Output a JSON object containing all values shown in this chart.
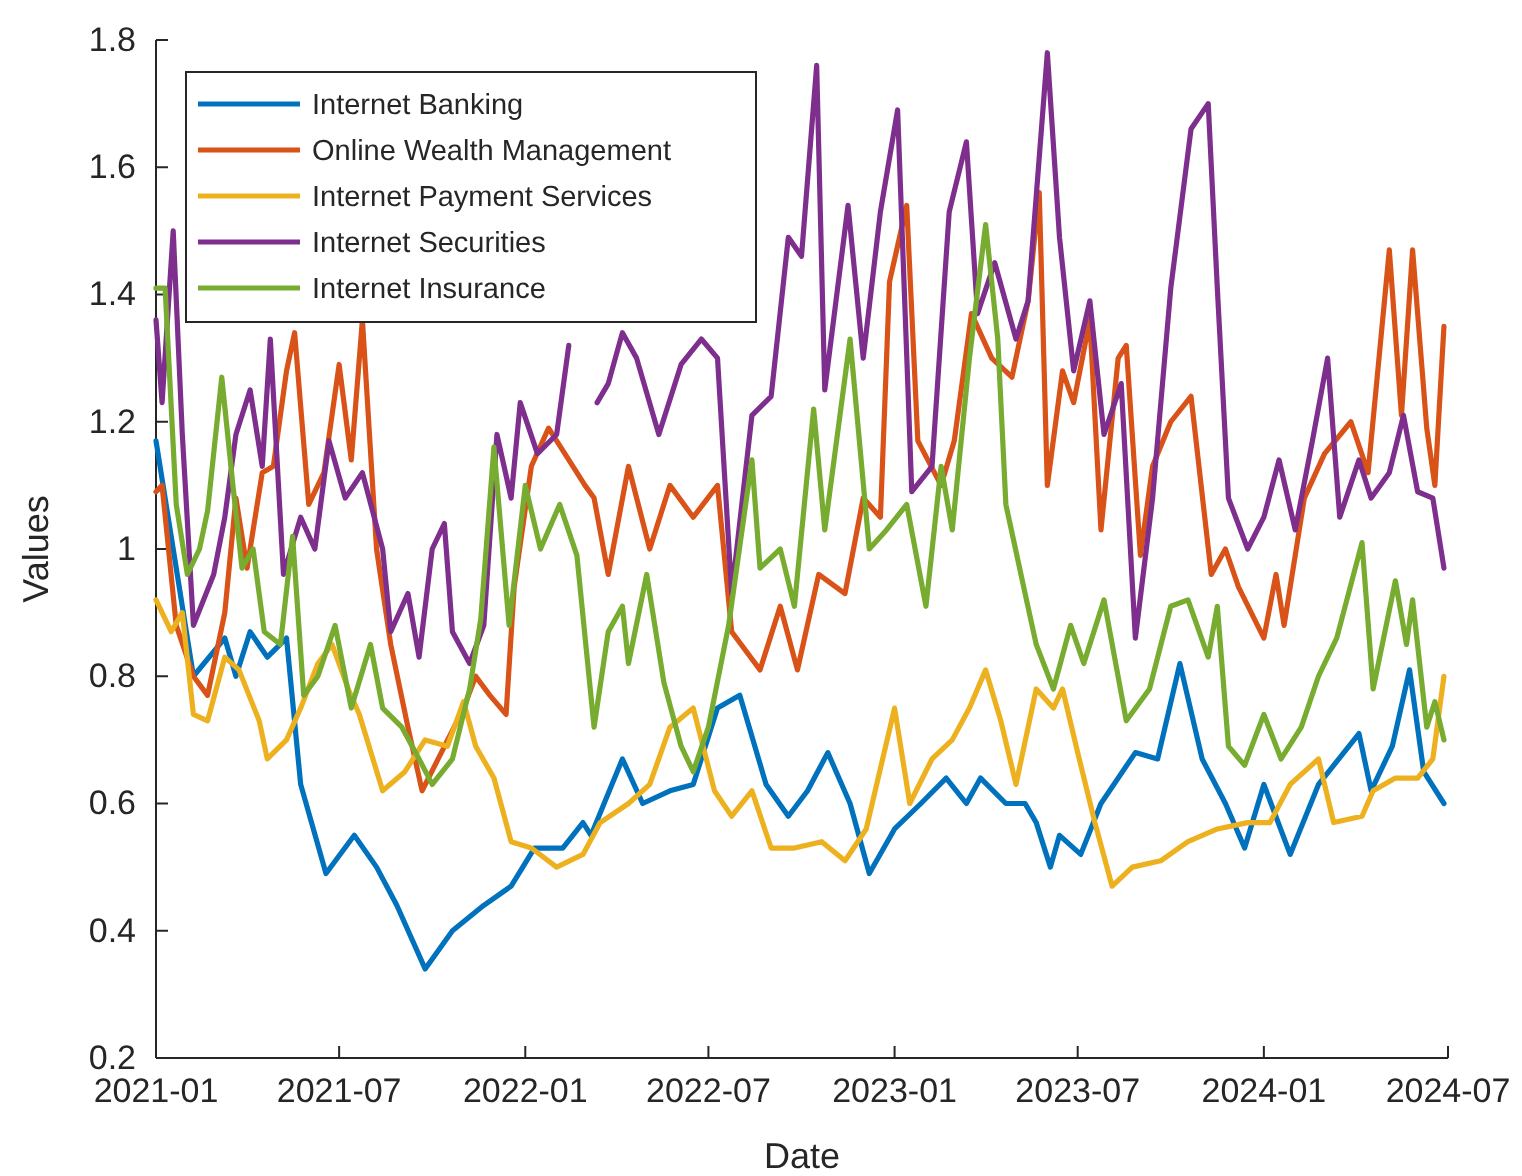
{
  "chart_data": {
    "type": "line",
    "xlabel": "Date",
    "ylabel": "Values",
    "legend": "top left",
    "grid": false,
    "line_style": "solid",
    "xlim": [
      "2021-01-01",
      "2024-07-01"
    ],
    "xticks": [
      {
        "value": "2021-01-01",
        "label": "2021-01"
      },
      {
        "value": "2021-07-01",
        "label": "2021-07"
      },
      {
        "value": "2022-01-01",
        "label": "2022-01"
      },
      {
        "value": "2022-07-01",
        "label": "2022-07"
      },
      {
        "value": "2023-01-01",
        "label": "2023-01"
      },
      {
        "value": "2023-07-01",
        "label": "2023-07"
      },
      {
        "value": "2024-01-01",
        "label": "2024-01"
      },
      {
        "value": "2024-07-01",
        "label": "2024-07"
      }
    ],
    "ylim": [
      0.2,
      1.8
    ],
    "yticks": [
      0.2,
      0.4,
      0.6,
      0.8,
      1,
      1.2,
      1.4,
      1.6,
      1.8
    ],
    "series": [
      {
        "name": "Internet Banking",
        "color": "#0072bd",
        "x": [
          "2021-01-01",
          "2021-02-07",
          "2021-03-10",
          "2021-03-21",
          "2021-04-04",
          "2021-04-21",
          "2021-05-10",
          "2021-05-24",
          "2021-06-18",
          "2021-07-16",
          "2021-08-07",
          "2021-08-27",
          "2021-09-24",
          "2021-10-21",
          "2021-11-21",
          "2021-12-18",
          "2022-01-10",
          "2022-02-07",
          "2022-02-27",
          "2022-03-07",
          "2022-04-07",
          "2022-04-27",
          "2022-05-24",
          "2022-06-16",
          "2022-07-10",
          "2022-08-01",
          "2022-08-27",
          "2022-09-18",
          "2022-10-07",
          "2022-10-27",
          "2022-11-18",
          "2022-12-07",
          "2023-01-01",
          "2023-01-27",
          "2023-02-21",
          "2023-03-13",
          "2023-03-27",
          "2023-04-21",
          "2023-05-10",
          "2023-05-21",
          "2023-06-04",
          "2023-06-13",
          "2023-07-04",
          "2023-07-24",
          "2023-08-27",
          "2023-09-18",
          "2023-10-10",
          "2023-11-01",
          "2023-11-24",
          "2023-12-13",
          "2024-01-01",
          "2024-01-27",
          "2024-02-24",
          "2024-03-10",
          "2024-04-04",
          "2024-04-16",
          "2024-05-07",
          "2024-05-24",
          "2024-06-07",
          "2024-06-27"
        ],
        "values": [
          1.17,
          0.8,
          0.86,
          0.8,
          0.87,
          0.83,
          0.86,
          0.63,
          0.49,
          0.55,
          0.5,
          0.44,
          0.34,
          0.4,
          0.44,
          0.47,
          0.53,
          0.53,
          0.57,
          0.55,
          0.67,
          0.6,
          0.62,
          0.63,
          0.75,
          0.77,
          0.63,
          0.58,
          0.62,
          0.68,
          0.6,
          0.49,
          0.56,
          0.6,
          0.64,
          0.6,
          0.64,
          0.6,
          0.6,
          0.57,
          0.5,
          0.55,
          0.52,
          0.6,
          0.68,
          0.67,
          0.82,
          0.67,
          0.6,
          0.53,
          0.63,
          0.52,
          0.63,
          0.66,
          0.71,
          0.62,
          0.69,
          0.81,
          0.65,
          0.6
        ]
      },
      {
        "name": "Online Wealth Management",
        "color": "#d95319",
        "x": [
          "2021-01-01",
          "2021-01-07",
          "2021-01-21",
          "2021-02-07",
          "2021-02-21",
          "2021-03-10",
          "2021-03-21",
          "2021-04-01",
          "2021-04-16",
          "2021-04-27",
          "2021-05-10",
          "2021-05-18",
          "2021-06-01",
          "2021-06-16",
          "2021-07-01",
          "2021-07-13",
          "2021-07-24",
          "2021-08-07",
          "2021-08-21",
          "2021-09-07",
          "2021-09-21",
          "2021-10-10",
          "2021-11-01",
          "2021-11-13",
          "2021-11-27",
          "2021-12-13",
          "2021-12-21",
          "2022-01-07",
          "2022-01-24",
          "2022-02-13",
          "2022-03-01",
          "2022-03-10",
          "2022-03-24",
          "2022-04-13",
          "2022-05-04",
          "2022-05-24",
          "2022-06-16",
          "2022-07-10",
          "2022-07-24",
          "2022-08-21",
          "2022-09-10",
          "2022-09-27",
          "2022-10-18",
          "2022-11-13",
          "2022-12-01",
          "2022-12-18",
          "2022-12-27",
          "2023-01-13",
          "2023-01-24",
          "2023-02-16",
          "2023-03-01",
          "2023-03-18",
          "2023-04-07",
          "2023-04-27",
          "2023-05-13",
          "2023-05-24",
          "2023-06-01",
          "2023-06-16",
          "2023-06-27",
          "2023-07-13",
          "2023-07-24",
          "2023-08-10",
          "2023-08-18",
          "2023-09-01",
          "2023-09-13",
          "2023-10-01",
          "2023-10-21",
          "2023-11-10",
          "2023-11-24",
          "2023-12-07",
          "2024-01-01",
          "2024-01-13",
          "2024-01-21",
          "2024-02-10",
          "2024-03-01",
          "2024-03-27",
          "2024-04-13",
          "2024-05-04",
          "2024-05-16",
          "2024-05-27",
          "2024-06-10",
          "2024-06-18",
          "2024-06-27"
        ],
        "values": [
          1.09,
          1.1,
          0.88,
          0.8,
          0.77,
          0.9,
          1.08,
          0.97,
          1.12,
          1.13,
          1.28,
          1.34,
          1.07,
          1.12,
          1.29,
          1.14,
          1.36,
          1.0,
          0.85,
          0.72,
          0.62,
          0.68,
          0.75,
          0.8,
          0.77,
          0.74,
          0.94,
          1.13,
          1.19,
          1.14,
          1.1,
          1.08,
          0.96,
          1.13,
          1.0,
          1.1,
          1.05,
          1.1,
          0.87,
          0.81,
          0.91,
          0.81,
          0.96,
          0.93,
          1.08,
          1.05,
          1.42,
          1.54,
          1.17,
          1.1,
          1.17,
          1.37,
          1.3,
          1.27,
          1.39,
          1.56,
          1.1,
          1.28,
          1.23,
          1.36,
          1.03,
          1.3,
          1.32,
          0.99,
          1.13,
          1.2,
          1.24,
          0.96,
          1.0,
          0.94,
          0.86,
          0.96,
          0.88,
          1.08,
          1.15,
          1.2,
          1.12,
          1.47,
          1.21,
          1.47,
          1.19,
          1.1,
          1.35
        ]
      },
      {
        "name": "Internet Payment Services",
        "color": "#edb120",
        "x": [
          "2021-01-01",
          "2021-01-16",
          "2021-01-27",
          "2021-02-07",
          "2021-02-21",
          "2021-03-10",
          "2021-03-24",
          "2021-04-13",
          "2021-04-21",
          "2021-05-10",
          "2021-05-24",
          "2021-06-10",
          "2021-06-24",
          "2021-07-10",
          "2021-07-21",
          "2021-08-13",
          "2021-09-04",
          "2021-09-24",
          "2021-10-16",
          "2021-11-01",
          "2021-11-13",
          "2021-12-01",
          "2021-12-18",
          "2022-01-07",
          "2022-02-01",
          "2022-02-27",
          "2022-03-16",
          "2022-04-13",
          "2022-05-04",
          "2022-05-24",
          "2022-06-16",
          "2022-07-07",
          "2022-07-24",
          "2022-08-13",
          "2022-09-01",
          "2022-09-24",
          "2022-10-21",
          "2022-11-13",
          "2022-12-04",
          "2023-01-01",
          "2023-01-16",
          "2023-02-07",
          "2023-02-27",
          "2023-03-16",
          "2023-04-01",
          "2023-04-16",
          "2023-05-01",
          "2023-05-21",
          "2023-06-07",
          "2023-06-16",
          "2023-07-01",
          "2023-07-18",
          "2023-08-04",
          "2023-08-24",
          "2023-09-21",
          "2023-10-18",
          "2023-11-16",
          "2023-12-16",
          "2024-01-07",
          "2024-01-27",
          "2024-02-24",
          "2024-03-10",
          "2024-04-07",
          "2024-04-18",
          "2024-05-10",
          "2024-06-01",
          "2024-06-16",
          "2024-06-27"
        ],
        "values": [
          0.92,
          0.87,
          0.9,
          0.74,
          0.73,
          0.83,
          0.81,
          0.73,
          0.67,
          0.7,
          0.75,
          0.82,
          0.85,
          0.78,
          0.74,
          0.62,
          0.65,
          0.7,
          0.69,
          0.76,
          0.69,
          0.64,
          0.54,
          0.53,
          0.5,
          0.52,
          0.57,
          0.6,
          0.63,
          0.72,
          0.75,
          0.62,
          0.58,
          0.62,
          0.53,
          0.53,
          0.54,
          0.51,
          0.56,
          0.75,
          0.6,
          0.67,
          0.7,
          0.75,
          0.81,
          0.73,
          0.63,
          0.78,
          0.75,
          0.78,
          0.68,
          0.57,
          0.47,
          0.5,
          0.51,
          0.54,
          0.56,
          0.57,
          0.57,
          0.63,
          0.67,
          0.57,
          0.58,
          0.62,
          0.64,
          0.64,
          0.67,
          0.8
        ]
      },
      {
        "name": "Internet Securities",
        "color": "#7e2f8e",
        "x": [
          "2021-01-01",
          "2021-01-07",
          "2021-01-18",
          "2021-01-27",
          "2021-02-07",
          "2021-02-27",
          "2021-03-10",
          "2021-03-21",
          "2021-04-04",
          "2021-04-16",
          "2021-04-24",
          "2021-05-07",
          "2021-05-24",
          "2021-06-07",
          "2021-06-21",
          "2021-07-07",
          "2021-07-24",
          "2021-08-13",
          "2021-08-21",
          "2021-09-07",
          "2021-09-18",
          "2021-10-01",
          "2021-10-13",
          "2021-10-21",
          "2021-11-07",
          "2021-11-21",
          "2021-12-04",
          "2021-12-18",
          "2021-12-27",
          "2022-01-13",
          "2022-02-01",
          "2022-02-13",
          "2022-02-27",
          "2022-03-13",
          "2022-03-24",
          "2022-04-07",
          "2022-04-21",
          "2022-05-13",
          "2022-06-04",
          "2022-06-24",
          "2022-07-10",
          "2022-07-24",
          "2022-08-13",
          "2022-09-01",
          "2022-09-18",
          "2022-10-01",
          "2022-10-16",
          "2022-10-24",
          "2022-11-16",
          "2022-12-01",
          "2022-12-18",
          "2023-01-04",
          "2023-01-18",
          "2023-02-07",
          "2023-02-24",
          "2023-03-13",
          "2023-03-24",
          "2023-04-10",
          "2023-05-01",
          "2023-05-13",
          "2023-06-01",
          "2023-06-13",
          "2023-06-27",
          "2023-07-13",
          "2023-07-27",
          "2023-08-13",
          "2023-08-27",
          "2023-09-13",
          "2023-10-01",
          "2023-10-21",
          "2023-11-07",
          "2023-11-16",
          "2023-11-27",
          "2023-12-16",
          "2024-01-01",
          "2024-01-16",
          "2024-02-01",
          "2024-02-18",
          "2024-03-04",
          "2024-03-16",
          "2024-04-04",
          "2024-04-16",
          "2024-05-04",
          "2024-05-18",
          "2024-06-01",
          "2024-06-16",
          "2024-06-27"
        ],
        "values": [
          1.36,
          1.23,
          1.5,
          1.18,
          0.88,
          0.96,
          1.05,
          1.18,
          1.25,
          1.13,
          1.33,
          0.96,
          1.05,
          1.0,
          1.17,
          1.08,
          1.12,
          1.0,
          0.87,
          0.93,
          0.83,
          1.0,
          1.04,
          0.87,
          0.82,
          0.88,
          1.18,
          1.08,
          1.23,
          1.15,
          1.18,
          1.32,
          null,
          1.23,
          1.26,
          1.34,
          1.3,
          1.18,
          1.29,
          1.33,
          1.3,
          0.93,
          1.21,
          1.24,
          1.49,
          1.46,
          1.76,
          1.25,
          1.54,
          1.3,
          1.53,
          1.69,
          1.09,
          1.13,
          1.53,
          1.64,
          1.37,
          1.45,
          1.33,
          1.39,
          1.78,
          1.49,
          1.28,
          1.39,
          1.18,
          1.26,
          0.86,
          1.08,
          1.41,
          1.66,
          1.7,
          1.41,
          1.08,
          1.0,
          1.05,
          1.14,
          1.03,
          1.17,
          1.3,
          1.05,
          1.14,
          1.08,
          1.12,
          1.21,
          1.09,
          1.08,
          0.97
        ]
      },
      {
        "name": "Internet Insurance",
        "color": "#77ac30",
        "x": [
          "2021-01-01",
          "2021-01-10",
          "2021-01-21",
          "2021-02-01",
          "2021-02-13",
          "2021-02-21",
          "2021-03-07",
          "2021-03-18",
          "2021-03-27",
          "2021-04-07",
          "2021-04-18",
          "2021-05-04",
          "2021-05-16",
          "2021-05-27",
          "2021-06-10",
          "2021-06-27",
          "2021-07-13",
          "2021-08-01",
          "2021-08-13",
          "2021-09-01",
          "2021-09-18",
          "2021-10-01",
          "2021-10-21",
          "2021-11-07",
          "2021-11-18",
          "2021-12-01",
          "2021-12-16",
          "2022-01-01",
          "2022-01-16",
          "2022-02-04",
          "2022-02-21",
          "2022-03-10",
          "2022-03-24",
          "2022-04-07",
          "2022-04-13",
          "2022-05-01",
          "2022-05-18",
          "2022-06-04",
          "2022-06-16",
          "2022-07-01",
          "2022-07-21",
          "2022-08-13",
          "2022-08-21",
          "2022-09-10",
          "2022-09-24",
          "2022-10-13",
          "2022-10-24",
          "2022-11-18",
          "2022-12-07",
          "2022-12-24",
          "2023-01-13",
          "2023-02-01",
          "2023-02-16",
          "2023-02-27",
          "2023-03-16",
          "2023-04-01",
          "2023-04-13",
          "2023-04-21",
          "2023-05-10",
          "2023-05-21",
          "2023-06-07",
          "2023-06-24",
          "2023-07-07",
          "2023-07-27",
          "2023-08-18",
          "2023-09-10",
          "2023-10-01",
          "2023-10-18",
          "2023-11-07",
          "2023-11-16",
          "2023-11-27",
          "2023-12-13",
          "2024-01-01",
          "2024-01-18",
          "2024-02-07",
          "2024-02-24",
          "2024-03-13",
          "2024-04-07",
          "2024-04-18",
          "2024-05-10",
          "2024-05-21",
          "2024-05-27",
          "2024-06-10",
          "2024-06-18",
          "2024-06-27"
        ],
        "values": [
          1.41,
          1.41,
          1.07,
          0.96,
          1.0,
          1.06,
          1.27,
          1.1,
          0.97,
          1.0,
          0.87,
          0.85,
          1.02,
          0.77,
          0.8,
          0.88,
          0.75,
          0.85,
          0.75,
          0.72,
          0.67,
          0.63,
          0.67,
          0.78,
          0.89,
          1.16,
          0.88,
          1.1,
          1.0,
          1.07,
          0.99,
          0.72,
          0.87,
          0.91,
          0.82,
          0.96,
          0.79,
          0.69,
          0.65,
          0.72,
          0.88,
          1.14,
          0.97,
          1.0,
          0.91,
          1.22,
          1.03,
          1.33,
          1.0,
          1.03,
          1.07,
          0.91,
          1.13,
          1.03,
          1.3,
          1.51,
          1.33,
          1.07,
          0.93,
          0.85,
          0.78,
          0.88,
          0.82,
          0.92,
          0.73,
          0.78,
          0.91,
          0.92,
          0.83,
          0.91,
          0.69,
          0.66,
          0.74,
          0.67,
          0.72,
          0.8,
          0.86,
          1.01,
          0.78,
          0.95,
          0.85,
          0.92,
          0.72,
          0.76,
          0.7
        ]
      }
    ]
  }
}
